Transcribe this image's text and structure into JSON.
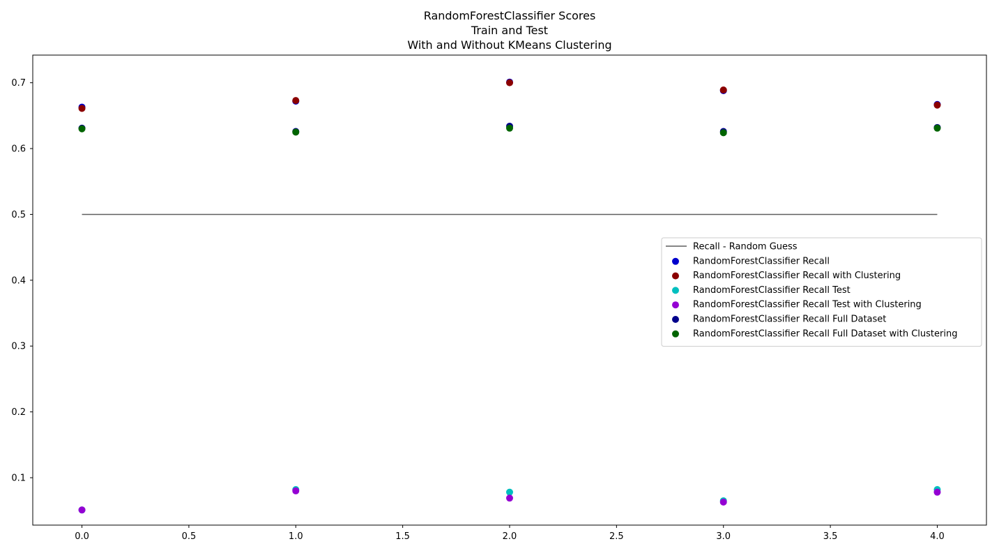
{
  "chart_data": {
    "type": "scatter",
    "title_lines": [
      "RandomForestClassifier Scores",
      "Train and Test",
      "With and Without KMeans Clustering"
    ],
    "xlabel": "",
    "ylabel": "",
    "xlim": [
      -0.23,
      4.23
    ],
    "ylim": [
      0.028,
      0.742
    ],
    "xticks": [
      0.0,
      0.5,
      1.0,
      1.5,
      2.0,
      2.5,
      3.0,
      3.5,
      4.0
    ],
    "xtick_labels": [
      "0.0",
      "0.5",
      "1.0",
      "1.5",
      "2.0",
      "2.5",
      "3.0",
      "3.5",
      "4.0"
    ],
    "yticks": [
      0.1,
      0.2,
      0.3,
      0.4,
      0.5,
      0.6,
      0.7
    ],
    "ytick_labels": [
      "0.1",
      "0.2",
      "0.3",
      "0.4",
      "0.5",
      "0.6",
      "0.7"
    ],
    "grid": false,
    "legend_position": "center-right",
    "lines": [
      {
        "name": "Recall - Random Guess",
        "x": [
          0,
          4
        ],
        "y": [
          0.5,
          0.5
        ],
        "color": "#5f5f5f"
      }
    ],
    "x": [
      0,
      1,
      2,
      3,
      4
    ],
    "series": [
      {
        "name": "RandomForestClassifier Recall",
        "color": "#0000cd",
        "values": [
          0.663,
          0.672,
          0.701,
          0.688,
          0.667
        ]
      },
      {
        "name": "RandomForestClassifier Recall with Clustering",
        "color": "#8b0000",
        "values": [
          0.661,
          0.673,
          0.7,
          0.689,
          0.666
        ]
      },
      {
        "name": "RandomForestClassifier Recall Test",
        "color": "#00bfbf",
        "values": [
          0.051,
          0.082,
          0.078,
          0.065,
          0.082
        ]
      },
      {
        "name": "RandomForestClassifier Recall Test with Clustering",
        "color": "#9400d3",
        "values": [
          0.051,
          0.08,
          0.069,
          0.063,
          0.078
        ]
      },
      {
        "name": "RandomForestClassifier Recall Full Dataset",
        "color": "#00008b",
        "values": [
          0.631,
          0.626,
          0.634,
          0.626,
          0.632
        ]
      },
      {
        "name": "RandomForestClassifier Recall Full Dataset with Clustering",
        "color": "#006400",
        "values": [
          0.63,
          0.625,
          0.631,
          0.624,
          0.631
        ]
      }
    ]
  }
}
